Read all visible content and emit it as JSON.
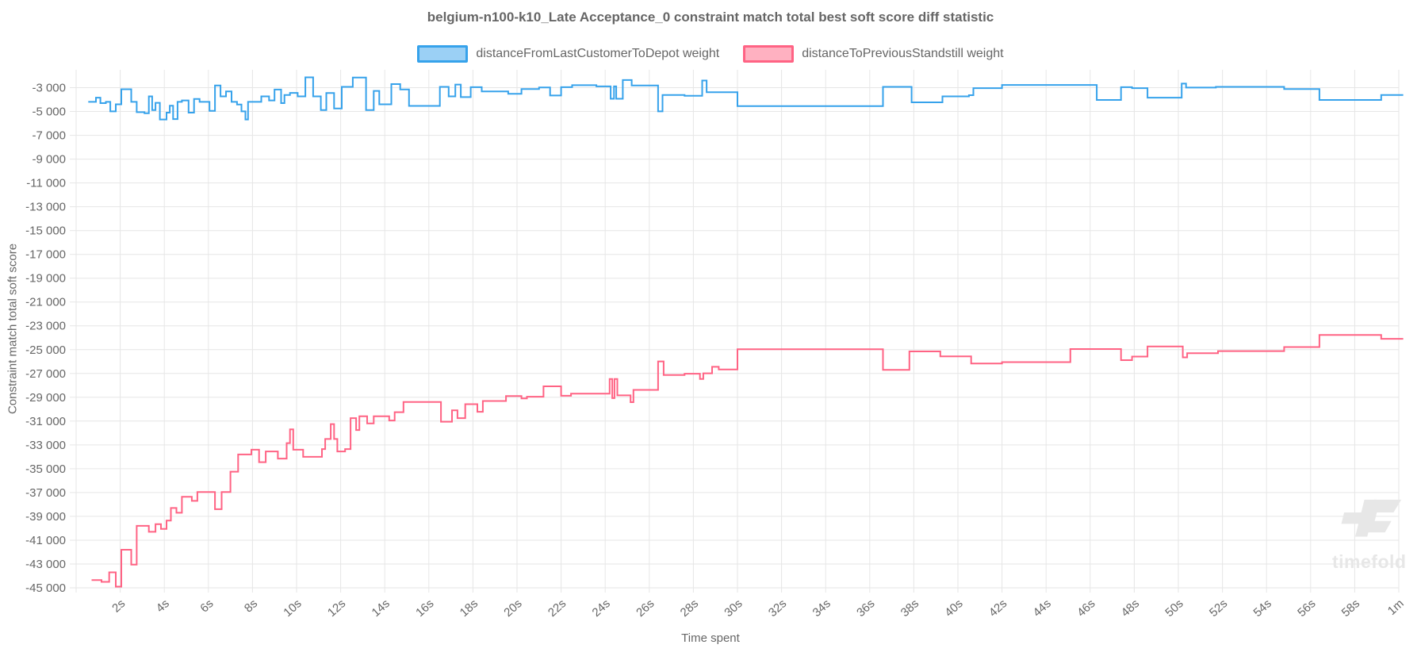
{
  "title": "belgium-n100-k10_Late Acceptance_0 constraint match total best soft score diff statistic",
  "legend": [
    {
      "label": "distanceFromLastCustomerToDepot weight",
      "color": "#36A2EB",
      "fill": "#9BD0F5"
    },
    {
      "label": "distanceToPreviousStandstill weight",
      "color": "#FF6384",
      "fill": "#FFB1C1"
    }
  ],
  "watermark": {
    "text": "timefold"
  },
  "colors": {
    "grid": "#e6e6e6",
    "tick_text": "#666666",
    "watermark": "#e7e7e7",
    "background": "#ffffff"
  },
  "chart_data": {
    "type": "line",
    "step": true,
    "title": "belgium-n100-k10_Late Acceptance_0 constraint match total best soft score diff statistic",
    "xlabel": "Time spent",
    "ylabel": "Constraint match total soft score",
    "legend_position": "top",
    "grid": true,
    "xlim": [
      0,
      60
    ],
    "ylim": [
      -45000,
      -1500
    ],
    "x_end": 60.2,
    "x_ticks": [
      {
        "t": 2,
        "label": "2s"
      },
      {
        "t": 4,
        "label": "4s"
      },
      {
        "t": 6,
        "label": "6s"
      },
      {
        "t": 8,
        "label": "8s"
      },
      {
        "t": 10,
        "label": "10s"
      },
      {
        "t": 12,
        "label": "12s"
      },
      {
        "t": 14,
        "label": "14s"
      },
      {
        "t": 16,
        "label": "16s"
      },
      {
        "t": 18,
        "label": "18s"
      },
      {
        "t": 20,
        "label": "20s"
      },
      {
        "t": 22,
        "label": "22s"
      },
      {
        "t": 24,
        "label": "24s"
      },
      {
        "t": 26,
        "label": "26s"
      },
      {
        "t": 28,
        "label": "28s"
      },
      {
        "t": 30,
        "label": "30s"
      },
      {
        "t": 32,
        "label": "32s"
      },
      {
        "t": 34,
        "label": "34s"
      },
      {
        "t": 36,
        "label": "36s"
      },
      {
        "t": 38,
        "label": "38s"
      },
      {
        "t": 40,
        "label": "40s"
      },
      {
        "t": 42,
        "label": "42s"
      },
      {
        "t": 44,
        "label": "44s"
      },
      {
        "t": 46,
        "label": "46s"
      },
      {
        "t": 48,
        "label": "48s"
      },
      {
        "t": 50,
        "label": "50s"
      },
      {
        "t": 52,
        "label": "52s"
      },
      {
        "t": 54,
        "label": "54s"
      },
      {
        "t": 56,
        "label": "56s"
      },
      {
        "t": 58,
        "label": "58s"
      },
      {
        "t": 60,
        "label": "1m"
      }
    ],
    "y_ticks": [
      {
        "v": -3000,
        "label": "-3 000"
      },
      {
        "v": -5000,
        "label": "-5 000"
      },
      {
        "v": -7000,
        "label": "-7 000"
      },
      {
        "v": -9000,
        "label": "-9 000"
      },
      {
        "v": -11000,
        "label": "-11 000"
      },
      {
        "v": -13000,
        "label": "-13 000"
      },
      {
        "v": -15000,
        "label": "-15 000"
      },
      {
        "v": -17000,
        "label": "-17 000"
      },
      {
        "v": -19000,
        "label": "-19 000"
      },
      {
        "v": -21000,
        "label": "-21 000"
      },
      {
        "v": -23000,
        "label": "-23 000"
      },
      {
        "v": -25000,
        "label": "-25 000"
      },
      {
        "v": -27000,
        "label": "-27 000"
      },
      {
        "v": -29000,
        "label": "-29 000"
      },
      {
        "v": -31000,
        "label": "-31 000"
      },
      {
        "v": -33000,
        "label": "-33 000"
      },
      {
        "v": -35000,
        "label": "-35 000"
      },
      {
        "v": -37000,
        "label": "-37 000"
      },
      {
        "v": -39000,
        "label": "-39 000"
      },
      {
        "v": -41000,
        "label": "-41 000"
      },
      {
        "v": -43000,
        "label": "-43 000"
      },
      {
        "v": -45000,
        "label": "-45 000"
      }
    ],
    "series": [
      {
        "name": "distanceFromLastCustomerToDepot weight",
        "color": "#36A2EB",
        "points": [
          [
            0.55,
            -4190
          ],
          [
            0.9,
            -3840
          ],
          [
            1.1,
            -4300
          ],
          [
            1.35,
            -4190
          ],
          [
            1.55,
            -4990
          ],
          [
            1.8,
            -4400
          ],
          [
            2.05,
            -3130
          ],
          [
            2.5,
            -4190
          ],
          [
            2.75,
            -5060
          ],
          [
            3.1,
            -5150
          ],
          [
            3.3,
            -3730
          ],
          [
            3.45,
            -4880
          ],
          [
            3.6,
            -4270
          ],
          [
            3.8,
            -5670
          ],
          [
            4.1,
            -5100
          ],
          [
            4.25,
            -4520
          ],
          [
            4.4,
            -5640
          ],
          [
            4.6,
            -4190
          ],
          [
            4.8,
            -4070
          ],
          [
            5.1,
            -5100
          ],
          [
            5.35,
            -3950
          ],
          [
            5.6,
            -4190
          ],
          [
            6.05,
            -4950
          ],
          [
            6.3,
            -2820
          ],
          [
            6.55,
            -3730
          ],
          [
            6.8,
            -3320
          ],
          [
            7.05,
            -4190
          ],
          [
            7.3,
            -4420
          ],
          [
            7.5,
            -4990
          ],
          [
            7.68,
            -5670
          ],
          [
            7.8,
            -4190
          ],
          [
            8.4,
            -3730
          ],
          [
            8.75,
            -4070
          ],
          [
            9.0,
            -3160
          ],
          [
            9.3,
            -4300
          ],
          [
            9.45,
            -3620
          ],
          [
            9.7,
            -3440
          ],
          [
            10.05,
            -3730
          ],
          [
            10.4,
            -2130
          ],
          [
            10.75,
            -3730
          ],
          [
            11.1,
            -4880
          ],
          [
            11.35,
            -3450
          ],
          [
            11.7,
            -4750
          ],
          [
            12.05,
            -2930
          ],
          [
            12.55,
            -2150
          ],
          [
            13.15,
            -4880
          ],
          [
            13.5,
            -3270
          ],
          [
            13.75,
            -4400
          ],
          [
            14.3,
            -2700
          ],
          [
            14.7,
            -3150
          ],
          [
            15.1,
            -4530
          ],
          [
            16.5,
            -2930
          ],
          [
            16.9,
            -3730
          ],
          [
            17.2,
            -2740
          ],
          [
            17.45,
            -3790
          ],
          [
            17.9,
            -2960
          ],
          [
            18.4,
            -3320
          ],
          [
            19.6,
            -3520
          ],
          [
            20.2,
            -3110
          ],
          [
            21.0,
            -2980
          ],
          [
            21.5,
            -3660
          ],
          [
            22.0,
            -2960
          ],
          [
            22.5,
            -2790
          ],
          [
            23.6,
            -2890
          ],
          [
            24.25,
            -3930
          ],
          [
            24.4,
            -2890
          ],
          [
            24.5,
            -3930
          ],
          [
            24.8,
            -2360
          ],
          [
            25.2,
            -2820
          ],
          [
            26.4,
            -4990
          ],
          [
            26.6,
            -3610
          ],
          [
            27.6,
            -3680
          ],
          [
            28.4,
            -2400
          ],
          [
            28.6,
            -3380
          ],
          [
            30.0,
            -4550
          ],
          [
            36.6,
            -2930
          ],
          [
            37.9,
            -4230
          ],
          [
            39.3,
            -3730
          ],
          [
            40.5,
            -3630
          ],
          [
            40.7,
            -3040
          ],
          [
            42.0,
            -2770
          ],
          [
            46.3,
            -4030
          ],
          [
            47.4,
            -2960
          ],
          [
            47.9,
            -3040
          ],
          [
            48.6,
            -3840
          ],
          [
            50.15,
            -2660
          ],
          [
            50.35,
            -2990
          ],
          [
            51.7,
            -2930
          ],
          [
            54.8,
            -3110
          ],
          [
            56.4,
            -4030
          ],
          [
            59.2,
            -3620
          ]
        ]
      },
      {
        "name": "distanceToPreviousStandstill weight",
        "color": "#FF6384",
        "points": [
          [
            0.7,
            -44350
          ],
          [
            1.15,
            -44500
          ],
          [
            1.5,
            -43700
          ],
          [
            1.8,
            -44900
          ],
          [
            2.05,
            -41800
          ],
          [
            2.5,
            -43050
          ],
          [
            2.75,
            -39800
          ],
          [
            3.3,
            -40300
          ],
          [
            3.6,
            -39650
          ],
          [
            3.85,
            -40050
          ],
          [
            4.1,
            -39350
          ],
          [
            4.3,
            -38300
          ],
          [
            4.55,
            -38700
          ],
          [
            4.8,
            -37350
          ],
          [
            5.25,
            -37700
          ],
          [
            5.5,
            -36950
          ],
          [
            6.3,
            -38400
          ],
          [
            6.6,
            -36950
          ],
          [
            7.0,
            -35250
          ],
          [
            7.35,
            -33800
          ],
          [
            7.95,
            -33400
          ],
          [
            8.3,
            -34450
          ],
          [
            8.6,
            -33550
          ],
          [
            9.15,
            -34150
          ],
          [
            9.55,
            -32850
          ],
          [
            9.7,
            -31700
          ],
          [
            9.85,
            -33400
          ],
          [
            10.3,
            -34000
          ],
          [
            11.15,
            -33350
          ],
          [
            11.3,
            -32500
          ],
          [
            11.55,
            -31250
          ],
          [
            11.7,
            -32500
          ],
          [
            11.85,
            -33550
          ],
          [
            12.2,
            -33350
          ],
          [
            12.45,
            -30750
          ],
          [
            12.7,
            -31750
          ],
          [
            12.85,
            -30600
          ],
          [
            13.2,
            -31200
          ],
          [
            13.5,
            -30600
          ],
          [
            14.2,
            -30950
          ],
          [
            14.45,
            -30250
          ],
          [
            14.85,
            -29400
          ],
          [
            16.55,
            -31050
          ],
          [
            17.05,
            -30100
          ],
          [
            17.3,
            -30750
          ],
          [
            17.65,
            -29580
          ],
          [
            18.2,
            -30220
          ],
          [
            18.45,
            -29310
          ],
          [
            19.5,
            -28900
          ],
          [
            20.2,
            -29100
          ],
          [
            20.45,
            -28950
          ],
          [
            21.2,
            -28080
          ],
          [
            22.0,
            -28870
          ],
          [
            22.45,
            -28700
          ],
          [
            24.2,
            -27470
          ],
          [
            24.32,
            -29070
          ],
          [
            24.42,
            -27470
          ],
          [
            24.55,
            -28840
          ],
          [
            25.15,
            -29410
          ],
          [
            25.28,
            -28380
          ],
          [
            26.4,
            -25990
          ],
          [
            26.65,
            -27130
          ],
          [
            27.6,
            -27020
          ],
          [
            28.3,
            -27470
          ],
          [
            28.45,
            -26990
          ],
          [
            28.85,
            -26440
          ],
          [
            29.15,
            -26670
          ],
          [
            30.0,
            -24960
          ],
          [
            36.6,
            -26700
          ],
          [
            37.8,
            -25150
          ],
          [
            39.2,
            -25570
          ],
          [
            40.6,
            -26170
          ],
          [
            42.0,
            -26050
          ],
          [
            45.1,
            -24950
          ],
          [
            47.4,
            -25880
          ],
          [
            47.9,
            -25580
          ],
          [
            48.6,
            -24730
          ],
          [
            50.2,
            -25650
          ],
          [
            50.4,
            -25300
          ],
          [
            51.8,
            -25120
          ],
          [
            54.8,
            -24780
          ],
          [
            56.4,
            -23760
          ],
          [
            59.2,
            -24090
          ]
        ]
      }
    ]
  }
}
